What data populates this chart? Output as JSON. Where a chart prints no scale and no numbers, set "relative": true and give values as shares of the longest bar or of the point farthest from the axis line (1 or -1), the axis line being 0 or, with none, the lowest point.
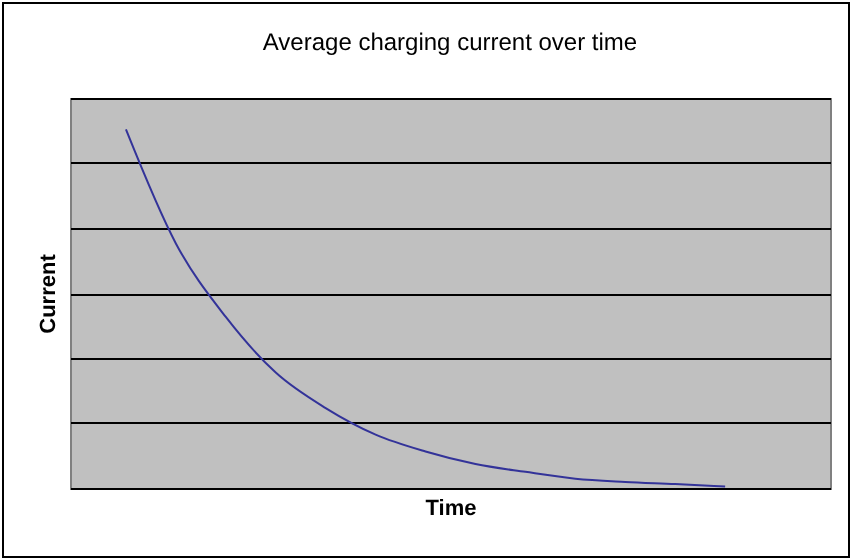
{
  "chart_data": {
    "type": "line",
    "title": "Average charging current over time",
    "xlabel": "Time",
    "ylabel": "Current",
    "relative": true,
    "grid": "y",
    "categories": [
      null,
      null,
      null,
      null,
      null,
      null,
      null,
      null,
      null,
      null,
      null,
      null,
      null
    ],
    "series": [
      {
        "color": "#333399",
        "values": [
          1,
          0.682,
          0.477,
          0.322,
          0.223,
          0.149,
          0.102,
          0.067,
          0.045,
          0.026,
          0.017,
          0.011,
          0.004
        ]
      }
    ]
  }
}
